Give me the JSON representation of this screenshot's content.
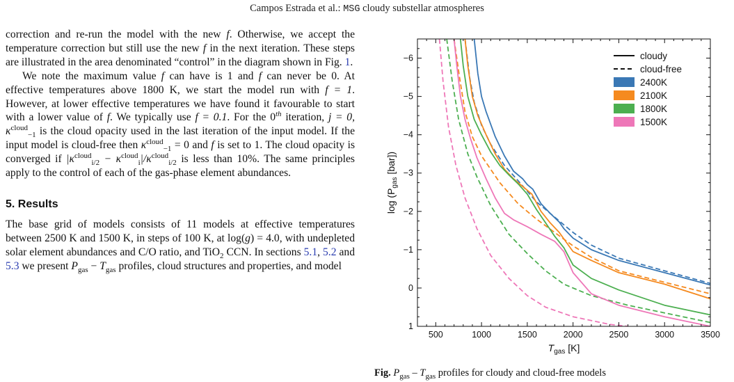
{
  "header": {
    "authors": "Campos Estrada et al.:",
    "code": "MSG",
    "title_rest": "cloudy substellar atmospheres"
  },
  "body": {
    "para1": [
      "correction and re-run the model with the new ",
      "f",
      ". Otherwise, we accept the temperature correction but still use the new ",
      "f",
      " in the next iteration. These steps are illustrated in the area denominated “control” in the diagram shown in Fig. ",
      "1",
      "."
    ],
    "para2": [
      "We note the maximum value ",
      "f",
      " can have is 1 and ",
      "f",
      " can never be 0. At effective temperatures above 1800 K, we start the model run with ",
      "f = 1",
      ". However, at lower effective temperatures we have found it favourable to start with a lower value of ",
      "f",
      ". We typically use ",
      "f = 0.1",
      ". For the 0",
      "th",
      " iteration, ",
      "j = 0, κ",
      "cloud",
      "−1",
      " is the cloud opacity used in the last iteration of the input model. If the input model is cloud-free then ",
      "κ",
      "cloud",
      "−1",
      " = 0 and ",
      "f",
      " is set to 1. The cloud opacity is converged if ",
      "|κ",
      "cloud",
      "i/2",
      " − κ",
      "cloud",
      "i",
      "|/κ",
      "cloud",
      "i/2",
      " is less than 10%. The same principles apply to the control of each of the gas-phase element abundances."
    ],
    "section_title": "5. Results",
    "para3": [
      "The base grid of models consists of 11 models at effective temperatures between 2500 K and 1500 K, in steps of 100 K, at log(",
      "g",
      ") = 4.0, with undepleted solar element abundances and C/O ratio, and TiO",
      "2",
      " CCN. In sections ",
      "5.1",
      ", ",
      "5.2",
      " and ",
      "5.3",
      " we present ",
      "P",
      "gas",
      " − ",
      "T",
      "gas",
      " profiles, cloud structures and properties, and model"
    ]
  },
  "caption": {
    "label": "Fig.",
    "text": " P",
    "sub1": "gas",
    "text2": " – T",
    "sub2": "gas",
    "text3": " profiles for cloudy and cloud-free models"
  },
  "chart_data": {
    "type": "line",
    "xlabel": "T",
    "xlabel_sub": "gas",
    "xlabel_unit": " [K]",
    "ylabel": "log (P",
    "ylabel_sub": "gas",
    "ylabel_unit": " [bar])",
    "xlim": [
      300,
      3500
    ],
    "ylim": [
      1,
      -6.5
    ],
    "y_inverted": true,
    "x_ticks": [
      500,
      1000,
      1500,
      2000,
      2500,
      3000,
      3500
    ],
    "y_ticks": [
      1,
      0,
      -1,
      -2,
      -3,
      -4,
      -5,
      -6
    ],
    "x_tick_labels": [
      "500",
      "1000",
      "1500",
      "2000",
      "2500",
      "3000",
      "3500"
    ],
    "y_tick_labels": [
      "1",
      "0",
      "−1",
      "−2",
      "−3",
      "−4",
      "−5",
      "−6"
    ],
    "legend_position": "top-right",
    "legend": [
      {
        "label": "cloudy",
        "style": "solid"
      },
      {
        "label": "cloud-free",
        "style": "dashed"
      },
      {
        "label": "2400K",
        "color": "#3a78b5"
      },
      {
        "label": "2100K",
        "color": "#f58a1f"
      },
      {
        "label": "1800K",
        "color": "#4caf50"
      },
      {
        "label": "1500K",
        "color": "#ee77b8"
      }
    ],
    "series": [
      {
        "name": "2400K",
        "style": "solid",
        "color": "#3a78b5",
        "points": [
          [
            920,
            -6.5
          ],
          [
            960,
            -5.6
          ],
          [
            1000,
            -5.0
          ],
          [
            1050,
            -4.6
          ],
          [
            1150,
            -3.95
          ],
          [
            1250,
            -3.45
          ],
          [
            1350,
            -3.05
          ],
          [
            1450,
            -2.85
          ],
          [
            1500,
            -2.7
          ],
          [
            1560,
            -2.58
          ],
          [
            1650,
            -2.2
          ],
          [
            1750,
            -1.95
          ],
          [
            1850,
            -1.72
          ],
          [
            1900,
            -1.55
          ],
          [
            2000,
            -1.3
          ],
          [
            2200,
            -1.0
          ],
          [
            2500,
            -0.72
          ],
          [
            3000,
            -0.4
          ],
          [
            3500,
            -0.08
          ]
        ]
      },
      {
        "name": "2400K",
        "style": "dashed",
        "color": "#3a78b5",
        "points": [
          [
            820,
            -6.5
          ],
          [
            870,
            -5.5
          ],
          [
            920,
            -4.85
          ],
          [
            1000,
            -4.25
          ],
          [
            1100,
            -3.75
          ],
          [
            1250,
            -3.2
          ],
          [
            1400,
            -2.8
          ],
          [
            1600,
            -2.25
          ],
          [
            1800,
            -1.85
          ],
          [
            2000,
            -1.45
          ],
          [
            2200,
            -1.12
          ],
          [
            2500,
            -0.78
          ],
          [
            3000,
            -0.45
          ],
          [
            3500,
            -0.12
          ]
        ]
      },
      {
        "name": "2100K",
        "style": "solid",
        "color": "#f58a1f",
        "points": [
          [
            820,
            -6.5
          ],
          [
            850,
            -5.8
          ],
          [
            900,
            -5.0
          ],
          [
            960,
            -4.5
          ],
          [
            1050,
            -4.0
          ],
          [
            1150,
            -3.5
          ],
          [
            1250,
            -3.1
          ],
          [
            1350,
            -2.85
          ],
          [
            1450,
            -2.65
          ],
          [
            1550,
            -2.45
          ],
          [
            1650,
            -2.0
          ],
          [
            1750,
            -1.7
          ],
          [
            1850,
            -1.45
          ],
          [
            1900,
            -1.28
          ],
          [
            2000,
            -0.95
          ],
          [
            2200,
            -0.72
          ],
          [
            2500,
            -0.4
          ],
          [
            3000,
            -0.1
          ],
          [
            3500,
            0.28
          ]
        ]
      },
      {
        "name": "2100K",
        "style": "dashed",
        "color": "#f58a1f",
        "points": [
          [
            700,
            -6.5
          ],
          [
            760,
            -5.5
          ],
          [
            820,
            -4.6
          ],
          [
            900,
            -3.95
          ],
          [
            1000,
            -3.45
          ],
          [
            1200,
            -2.75
          ],
          [
            1400,
            -2.2
          ],
          [
            1600,
            -1.8
          ],
          [
            1800,
            -1.45
          ],
          [
            2000,
            -1.1
          ],
          [
            2200,
            -0.8
          ],
          [
            2500,
            -0.45
          ],
          [
            3000,
            -0.15
          ],
          [
            3500,
            0.15
          ]
        ]
      },
      {
        "name": "1800K",
        "style": "solid",
        "color": "#4caf50",
        "points": [
          [
            770,
            -6.5
          ],
          [
            800,
            -5.8
          ],
          [
            850,
            -5.0
          ],
          [
            920,
            -4.4
          ],
          [
            1000,
            -4.0
          ],
          [
            1100,
            -3.55
          ],
          [
            1200,
            -3.2
          ],
          [
            1300,
            -2.95
          ],
          [
            1400,
            -2.72
          ],
          [
            1500,
            -2.45
          ],
          [
            1600,
            -2.05
          ],
          [
            1700,
            -1.7
          ],
          [
            1800,
            -1.35
          ],
          [
            1900,
            -1.05
          ],
          [
            2000,
            -0.6
          ],
          [
            2200,
            -0.25
          ],
          [
            2500,
            0.05
          ],
          [
            3000,
            0.45
          ],
          [
            3500,
            0.7
          ]
        ]
      },
      {
        "name": "1800K",
        "style": "dashed",
        "color": "#4caf50",
        "points": [
          [
            620,
            -6.5
          ],
          [
            680,
            -5.4
          ],
          [
            750,
            -4.4
          ],
          [
            850,
            -3.5
          ],
          [
            950,
            -2.9
          ],
          [
            1100,
            -2.15
          ],
          [
            1300,
            -1.4
          ],
          [
            1500,
            -0.9
          ],
          [
            1700,
            -0.45
          ],
          [
            1900,
            -0.1
          ],
          [
            2200,
            0.2
          ],
          [
            2600,
            0.45
          ],
          [
            3000,
            0.65
          ],
          [
            3500,
            0.9
          ]
        ]
      },
      {
        "name": "1500K",
        "style": "solid",
        "color": "#ee77b8",
        "points": [
          [
            700,
            -6.5
          ],
          [
            730,
            -5.8
          ],
          [
            770,
            -5.0
          ],
          [
            820,
            -4.4
          ],
          [
            880,
            -3.9
          ],
          [
            950,
            -3.4
          ],
          [
            1050,
            -2.85
          ],
          [
            1150,
            -2.35
          ],
          [
            1250,
            -1.95
          ],
          [
            1350,
            -1.78
          ],
          [
            1500,
            -1.6
          ],
          [
            1650,
            -1.4
          ],
          [
            1800,
            -1.22
          ],
          [
            1900,
            -0.95
          ],
          [
            2000,
            -0.4
          ],
          [
            2200,
            0.15
          ],
          [
            2500,
            0.45
          ],
          [
            3000,
            0.75
          ],
          [
            3500,
            1.0
          ]
        ]
      },
      {
        "name": "1500K",
        "style": "dashed",
        "color": "#ee77b8",
        "points": [
          [
            540,
            -6.5
          ],
          [
            580,
            -5.4
          ],
          [
            640,
            -4.2
          ],
          [
            720,
            -3.2
          ],
          [
            820,
            -2.35
          ],
          [
            950,
            -1.55
          ],
          [
            1100,
            -0.85
          ],
          [
            1300,
            -0.25
          ],
          [
            1500,
            0.2
          ],
          [
            1700,
            0.5
          ],
          [
            2000,
            0.75
          ],
          [
            2400,
            0.95
          ],
          [
            2600,
            1.0
          ]
        ]
      }
    ]
  }
}
